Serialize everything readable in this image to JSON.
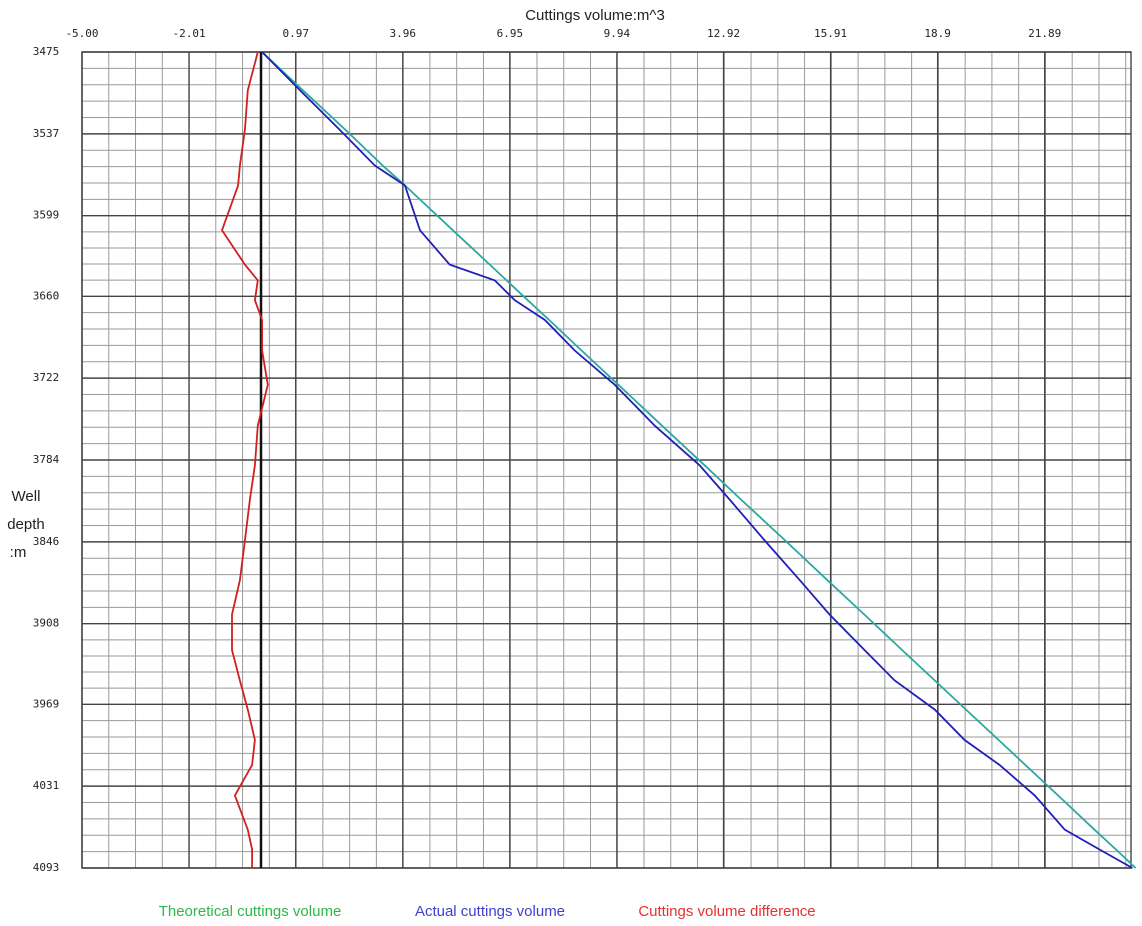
{
  "chart_data": {
    "type": "line",
    "title": "Cuttings volume:m^3",
    "y_label": [
      "Well",
      "depth",
      ":m"
    ],
    "y": [
      3475,
      3504,
      3534,
      3561,
      3576,
      3610,
      3636,
      3648,
      3663,
      3678,
      3701,
      3727,
      3758,
      3788,
      3814,
      3845,
      3875,
      3901,
      3928,
      3951,
      3973,
      3996,
      4015,
      4038,
      4064,
      4079,
      4093
    ],
    "series": [
      {
        "name": "Theoretical cuttings volume",
        "color": "#2aa8a0",
        "legend_color": "#2db84a",
        "values": [
          0.03,
          1.17,
          2.36,
          3.4,
          4.02,
          5.36,
          6.39,
          6.86,
          7.45,
          8.05,
          8.95,
          9.98,
          11.2,
          12.39,
          13.41,
          14.64,
          15.82,
          16.85,
          17.91,
          18.82,
          19.69,
          20.6,
          21.35,
          22.26,
          23.28,
          23.88,
          24.43
        ]
      },
      {
        "name": "Actual cuttings volume",
        "color": "#2020b8",
        "legend_color": "#4040d0",
        "values": [
          0.03,
          1.09,
          2.2,
          3.18,
          4.02,
          4.44,
          5.27,
          6.53,
          7.09,
          7.93,
          8.76,
          9.88,
          11.0,
          12.25,
          13.09,
          14.07,
          15.05,
          15.88,
          16.86,
          17.7,
          18.82,
          19.65,
          20.63,
          21.61,
          22.45,
          23.42,
          24.34
        ]
      },
      {
        "name": "Cuttings volume difference",
        "color": "#d02020",
        "legend_color": "#e83030",
        "values": [
          -0.09,
          -0.37,
          -0.45,
          -0.59,
          -0.64,
          -1.09,
          -0.45,
          -0.09,
          -0.17,
          0.03,
          0.03,
          0.19,
          -0.09,
          -0.17,
          -0.31,
          -0.45,
          -0.59,
          -0.81,
          -0.81,
          -0.59,
          -0.37,
          -0.17,
          -0.25,
          -0.73,
          -0.37,
          -0.25,
          -0.25
        ]
      }
    ],
    "xlim": [
      -5,
      24.3
    ],
    "xticks": [
      {
        "value": -5,
        "label": "-5.00"
      },
      -2.01,
      0.97,
      3.96,
      6.95,
      9.94,
      12.92,
      15.91,
      18.9,
      21.89
    ],
    "ylim": [
      3475,
      4093
    ],
    "yticks": [
      3475,
      3537,
      3599,
      3660,
      3722,
      3784,
      3846,
      3908,
      3969,
      4031,
      4093
    ],
    "y_inverted": true,
    "grid": true
  }
}
